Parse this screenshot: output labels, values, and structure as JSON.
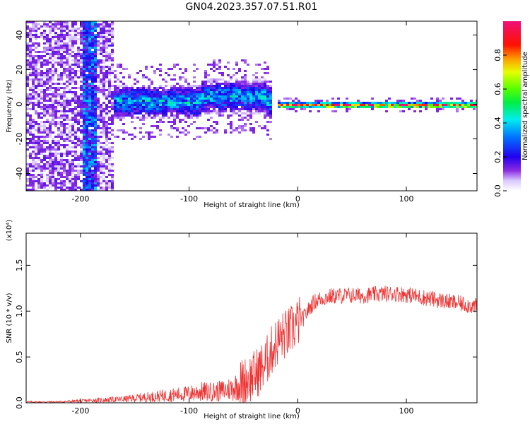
{
  "figure_title": "GN04.2023.357.07.51.R01",
  "chart_data": [
    {
      "type": "heatmap",
      "title": "GN04.2023.357.07.51.R01",
      "xlabel": "Height of straight line (km)",
      "ylabel": "Frequency (Hz)",
      "xlim": [
        -250,
        165
      ],
      "ylim": [
        -50,
        48
      ],
      "x_ticks": [
        -200,
        -100,
        0,
        100
      ],
      "x_tick_labels": [
        "-200",
        "-100",
        "0",
        "100"
      ],
      "y_ticks": [
        40,
        20,
        0,
        -20,
        -40
      ],
      "y_tick_labels": [
        "40",
        "20",
        "0",
        "-20",
        "-40"
      ],
      "colorbar": {
        "label": "Normalized spectral amplitude",
        "range": [
          0,
          1
        ],
        "ticks": [
          0.0,
          0.2,
          0.4,
          0.6,
          0.8
        ],
        "tick_labels": [
          "0.0",
          "0.2",
          "0.4",
          "0.6",
          "0.8"
        ],
        "colormap": "rainbow (white→violet→blue→cyan→green→yellow→red→magenta)"
      },
      "features": [
        {
          "x_range": [
            -250,
            -170
          ],
          "freq_range": [
            -50,
            48
          ],
          "amplitude": 0.1,
          "description_type": "broadband noise"
        },
        {
          "x_range": [
            -200,
            -185
          ],
          "freq_range": [
            -50,
            48
          ],
          "amplitude": 0.25,
          "description_type": "vertical streak"
        },
        {
          "x_range": [
            -170,
            -25
          ],
          "freq_center": 2,
          "freq_halfwidth": 10,
          "amplitude": 0.35,
          "description_type": "signal band"
        },
        {
          "x_range": [
            -20,
            165
          ],
          "freq_center": 0,
          "freq_halfwidth": 2,
          "amplitude": 0.85,
          "description_type": "narrow carrier line"
        }
      ]
    },
    {
      "type": "line",
      "xlabel": "Height of straight line (km)",
      "ylabel": "SNR (10 * v/v)",
      "y_scale_note": "(x10⁴)",
      "xlim": [
        -250,
        165
      ],
      "ylim": [
        0,
        1.85
      ],
      "x_ticks": [
        -200,
        -100,
        0,
        100
      ],
      "x_tick_labels": [
        "-200",
        "-100",
        "0",
        "100"
      ],
      "y_ticks": [
        0.0,
        0.5,
        1.0,
        1.5
      ],
      "y_tick_labels": [
        "0.0",
        "0.5",
        "1.0",
        "1.5"
      ],
      "color": "#ee3333",
      "series": [
        {
          "x": [
            -250,
            -220,
            -200,
            -180,
            -160,
            -140,
            -120,
            -100,
            -90,
            -80,
            -70,
            -60,
            -50,
            -40,
            -30,
            -25,
            -20,
            -15,
            -10,
            -5,
            0,
            5,
            10,
            15,
            20,
            30,
            40,
            50,
            60,
            70,
            80,
            90,
            100,
            110,
            120,
            130,
            140,
            150,
            160,
            165
          ],
          "y": [
            0.01,
            0.01,
            0.02,
            0.03,
            0.04,
            0.06,
            0.08,
            0.1,
            0.12,
            0.12,
            0.13,
            0.16,
            0.22,
            0.3,
            0.42,
            0.55,
            0.65,
            0.72,
            0.75,
            0.8,
            0.88,
            0.92,
            1.02,
            1.1,
            1.13,
            1.16,
            1.17,
            1.17,
            1.17,
            1.18,
            1.19,
            1.19,
            1.18,
            1.16,
            1.14,
            1.12,
            1.1,
            1.08,
            1.06,
            1.05
          ]
        }
      ]
    }
  ]
}
